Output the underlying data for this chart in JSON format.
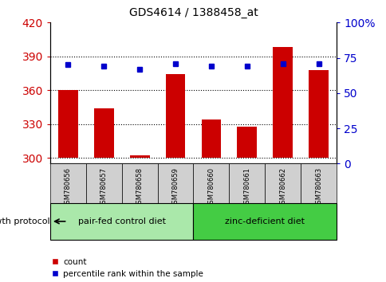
{
  "title": "GDS4614 / 1388458_at",
  "samples": [
    "GSM780656",
    "GSM780657",
    "GSM780658",
    "GSM780659",
    "GSM780660",
    "GSM780661",
    "GSM780662",
    "GSM780663"
  ],
  "counts": [
    360,
    344,
    302,
    374,
    334,
    328,
    398,
    378
  ],
  "percentiles": [
    70,
    69,
    67,
    71,
    69,
    69,
    71,
    71
  ],
  "ylim_left": [
    295,
    420
  ],
  "ylim_right": [
    0,
    100
  ],
  "yticks_left": [
    300,
    330,
    360,
    390,
    420
  ],
  "yticks_right": [
    0,
    25,
    50,
    75,
    100
  ],
  "ytick_labels_right": [
    "0",
    "25",
    "50",
    "75",
    "100%"
  ],
  "groups": [
    {
      "label": "pair-fed control diet",
      "color": "#aae8aa",
      "indices": [
        0,
        1,
        2,
        3
      ]
    },
    {
      "label": "zinc-deficient diet",
      "color": "#44cc44",
      "indices": [
        4,
        5,
        6,
        7
      ]
    }
  ],
  "group_label": "growth protocol",
  "bar_color": "#cc0000",
  "dot_color": "#0000cc",
  "bar_width": 0.55,
  "baseline": 300,
  "tick_label_color_left": "#cc0000",
  "tick_label_color_right": "#0000cc",
  "grid_color": "#000000",
  "plot_bg_color": "#ffffff",
  "x_bg_color": "#d0d0d0",
  "figsize": [
    4.85,
    3.54
  ],
  "dpi": 100
}
